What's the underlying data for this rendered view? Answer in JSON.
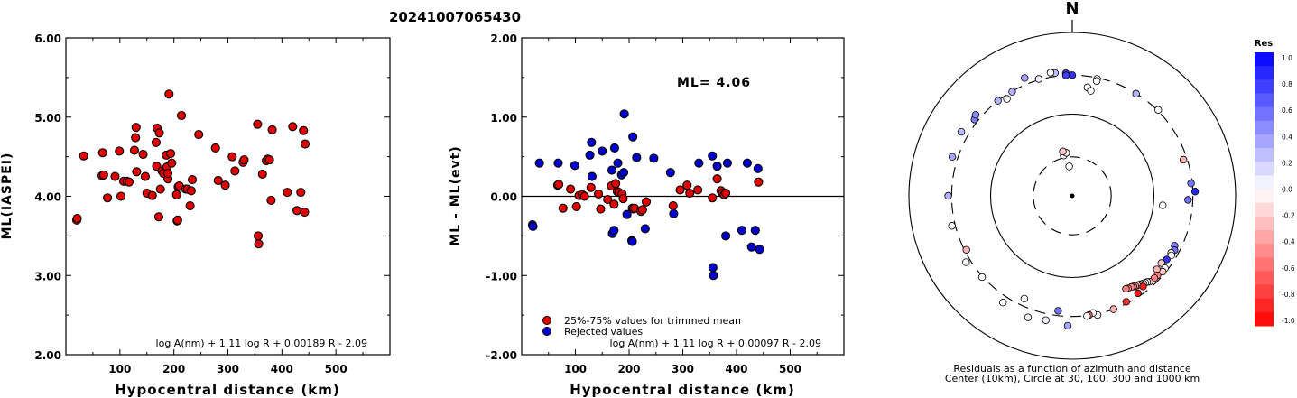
{
  "figure_title": "20241007065430",
  "chart_data": [
    {
      "type": "scatter",
      "title": "",
      "xlabel": "Hypocentral distance (km)",
      "ylabel": "ML(IASPEI)",
      "xlim": [
        0,
        600
      ],
      "ylim": [
        2.0,
        6.0
      ],
      "x_ticks": [
        "100",
        "200",
        "300",
        "400",
        "500"
      ],
      "y_ticks": [
        "2.00",
        "3.00",
        "4.00",
        "5.00",
        "6.00"
      ],
      "formula": "log A(nm) + 1.11 log R + 0.00189 R - 2.09",
      "grid": false,
      "series": [
        {
          "color": "#e00000",
          "points": [
            [
              20,
              3.7
            ],
            [
              21,
              3.72
            ],
            [
              33,
              4.51
            ],
            [
              67,
              4.26
            ],
            [
              68,
              4.55
            ],
            [
              70,
              4.27
            ],
            [
              77,
              3.98
            ],
            [
              91,
              4.25
            ],
            [
              99,
              4.57
            ],
            [
              102,
              4.0
            ],
            [
              107,
              4.19
            ],
            [
              113,
              4.19
            ],
            [
              117,
              4.18
            ],
            [
              127,
              4.58
            ],
            [
              129,
              4.74
            ],
            [
              130,
              4.87
            ],
            [
              131,
              4.31
            ],
            [
              143,
              4.53
            ],
            [
              147,
              4.25
            ],
            [
              150,
              4.04
            ],
            [
              160,
              4.01
            ],
            [
              167,
              4.68
            ],
            [
              168,
              4.38
            ],
            [
              169,
              4.86
            ],
            [
              172,
              3.74
            ],
            [
              173,
              4.8
            ],
            [
              175,
              4.09
            ],
            [
              178,
              4.32
            ],
            [
              181,
              4.29
            ],
            [
              186,
              4.52
            ],
            [
              187,
              4.37
            ],
            [
              189,
              4.22
            ],
            [
              189,
              4.29
            ],
            [
              191,
              5.29
            ],
            [
              194,
              4.54
            ],
            [
              196,
              4.42
            ],
            [
              205,
              4.02
            ],
            [
              206,
              3.69
            ],
            [
              207,
              3.7
            ],
            [
              208,
              4.12
            ],
            [
              210,
              4.13
            ],
            [
              214,
              5.02
            ],
            [
              222,
              4.09
            ],
            [
              225,
              4.09
            ],
            [
              230,
              3.88
            ],
            [
              232,
              4.07
            ],
            [
              234,
              4.21
            ],
            [
              246,
              4.78
            ],
            [
              277,
              4.61
            ],
            [
              282,
              4.2
            ],
            [
              295,
              4.14
            ],
            [
              308,
              4.5
            ],
            [
              313,
              4.32
            ],
            [
              328,
              4.43
            ],
            [
              330,
              4.46
            ],
            [
              355,
              4.91
            ],
            [
              356,
              3.5
            ],
            [
              357,
              3.4
            ],
            [
              364,
              4.28
            ],
            [
              371,
              4.45
            ],
            [
              374,
              4.47
            ],
            [
              377,
              4.46
            ],
            [
              380,
              3.95
            ],
            [
              382,
              4.84
            ],
            [
              410,
              4.05
            ],
            [
              420,
              4.88
            ],
            [
              428,
              3.82
            ],
            [
              435,
              4.05
            ],
            [
              440,
              4.83
            ],
            [
              442,
              3.8
            ],
            [
              443,
              4.66
            ]
          ]
        }
      ]
    },
    {
      "type": "scatter",
      "title": "",
      "xlabel": "Hypocentral distance (km)",
      "ylabel": "ML - ML(evt)",
      "xlim": [
        0,
        600
      ],
      "ylim": [
        -2.0,
        2.0
      ],
      "x_ticks": [
        "100",
        "200",
        "300",
        "400",
        "500"
      ],
      "y_ticks": [
        "-2.00",
        "-1.00",
        "0.00",
        "1.00",
        "2.00"
      ],
      "annotation": "ML= 4.06",
      "formula": "log A(nm) + 1.11 log R + 0.00097 R - 2.09",
      "legend_position": "bottom-left",
      "reference_line": 0,
      "series": [
        {
          "name": "25%-75% values for trimmed mean",
          "color": "#e00000",
          "points": [
            [
              67,
              0.14
            ],
            [
              69,
              0.15
            ],
            [
              77,
              -0.15
            ],
            [
              91,
              0.09
            ],
            [
              102,
              -0.13
            ],
            [
              107,
              0.01
            ],
            [
              113,
              0.02
            ],
            [
              117,
              0.0
            ],
            [
              129,
              0.11
            ],
            [
              143,
              0.03
            ],
            [
              147,
              -0.16
            ],
            [
              160,
              -0.04
            ],
            [
              167,
              0.13
            ],
            [
              172,
              -0.1
            ],
            [
              175,
              0.16
            ],
            [
              178,
              0.06
            ],
            [
              181,
              0.05
            ],
            [
              187,
              0.03
            ],
            [
              189,
              -0.03
            ],
            [
              206,
              -0.15
            ],
            [
              208,
              -0.16
            ],
            [
              210,
              -0.15
            ],
            [
              222,
              -0.19
            ],
            [
              225,
              -0.17
            ],
            [
              232,
              -0.07
            ],
            [
              282,
              -0.12
            ],
            [
              295,
              0.08
            ],
            [
              308,
              0.14
            ],
            [
              313,
              0.04
            ],
            [
              328,
              0.08
            ],
            [
              355,
              -0.02
            ],
            [
              364,
              0.22
            ],
            [
              371,
              0.07
            ],
            [
              374,
              0.04
            ],
            [
              377,
              0.02
            ],
            [
              380,
              0.04
            ],
            [
              441,
              0.18
            ]
          ]
        },
        {
          "name": "Rejected values",
          "color": "#0000cc",
          "points": [
            [
              20,
              -0.36
            ],
            [
              21,
              -0.38
            ],
            [
              33,
              0.42
            ],
            [
              68,
              0.42
            ],
            [
              99,
              0.39
            ],
            [
              127,
              0.52
            ],
            [
              130,
              0.68
            ],
            [
              131,
              0.25
            ],
            [
              150,
              0.57
            ],
            [
              168,
              0.33
            ],
            [
              169,
              -0.47
            ],
            [
              172,
              -0.43
            ],
            [
              173,
              0.61
            ],
            [
              179,
              0.42
            ],
            [
              186,
              0.27
            ],
            [
              190,
              0.3
            ],
            [
              191,
              1.04
            ],
            [
              196,
              -0.23
            ],
            [
              205,
              -0.56
            ],
            [
              206,
              -0.57
            ],
            [
              207,
              0.75
            ],
            [
              214,
              0.49
            ],
            [
              230,
              -0.41
            ],
            [
              246,
              0.48
            ],
            [
              277,
              0.3
            ],
            [
              283,
              -0.22
            ],
            [
              330,
              0.42
            ],
            [
              355,
              0.51
            ],
            [
              356,
              -0.9
            ],
            [
              357,
              -1.0
            ],
            [
              364,
              0.38
            ],
            [
              380,
              -0.5
            ],
            [
              383,
              0.42
            ],
            [
              410,
              -0.43
            ],
            [
              420,
              0.42
            ],
            [
              428,
              -0.64
            ],
            [
              435,
              -0.43
            ],
            [
              440,
              0.35
            ],
            [
              443,
              -0.67
            ]
          ]
        }
      ]
    },
    {
      "type": "scatter",
      "title": "N",
      "caption_line1": "Residuals as a function of azimuth and distance",
      "caption_line2": "Center (10km), Circle at 30, 100, 300 and 1000 km",
      "colorbar_title": "Res",
      "colorbar_ticks": [
        "1.0",
        "0.8",
        "0.6",
        "0.4",
        "0.2",
        "0.0",
        "-0.2",
        "-0.4",
        "-0.6",
        "-0.8",
        "-1.0"
      ],
      "colorbar_range": [
        -1.0,
        1.0
      ],
      "rings_km": [
        30,
        100,
        300,
        1000
      ],
      "points_polar_note_fields": [
        "azimuth_deg",
        "distance_km",
        "residual"
      ],
      "points": [
        [
          -6,
          23,
          0.0
        ],
        [
          -12,
          32,
          0.0
        ],
        [
          -8,
          34,
          -0.1
        ],
        [
          -12,
          36,
          -0.2
        ],
        [
          -8,
          330,
          0.25
        ],
        [
          -22,
          360,
          0.35
        ],
        [
          -10,
          340,
          0.0
        ],
        [
          -3,
          318,
          0.7
        ],
        [
          -3,
          300,
          0.75
        ],
        [
          0,
          300,
          0.8
        ],
        [
          -16,
          308,
          0.05
        ],
        [
          12,
          291,
          0.0
        ],
        [
          8,
          219,
          0.0
        ],
        [
          10,
          202,
          0.0
        ],
        [
          12,
          274,
          0.0
        ],
        [
          -30,
          296,
          0.3
        ],
        [
          -38,
          300,
          0.3
        ],
        [
          -34,
          270,
          0.0
        ],
        [
          -52,
          330,
          0.5
        ],
        [
          -50,
          350,
          0.45
        ],
        [
          -60,
          370,
          0.25
        ],
        [
          -72,
          350,
          0.35
        ],
        [
          -90,
          330,
          0.3
        ],
        [
          -104,
          330,
          0.0
        ],
        [
          -122,
          342,
          0.0
        ],
        [
          -132,
          306,
          0.0
        ],
        [
          -155,
          245,
          0.0
        ],
        [
          -117,
          285,
          -0.3
        ],
        [
          -147,
          361,
          0.0
        ],
        [
          -173,
          262,
          0.55
        ],
        [
          -178,
          390,
          0.35
        ],
        [
          -168,
          360,
          0.05
        ],
        [
          -160,
          383,
          0.05
        ],
        [
          32,
          298,
          0.3
        ],
        [
          45,
          308,
          0.0
        ],
        [
          72,
          270,
          -0.3
        ],
        [
          84,
          290,
          0.55
        ],
        [
          88,
          320,
          0.85
        ],
        [
          92,
          262,
          0.55
        ],
        [
          96,
          130,
          0.0
        ],
        [
          116,
          248,
          0.5
        ],
        [
          118,
          262,
          0.55
        ],
        [
          120,
          250,
          0.0
        ],
        [
          121,
          260,
          0.0
        ],
        [
          124,
          248,
          0.8
        ],
        [
          127,
          233,
          -0.2
        ],
        [
          128,
          275,
          0.0
        ],
        [
          130,
          278,
          -0.2
        ],
        [
          131,
          236,
          -0.3
        ],
        [
          133,
          267,
          -0.5
        ],
        [
          135,
          265,
          -0.5
        ],
        [
          138,
          260,
          -0.3
        ],
        [
          139,
          250,
          0.0
        ],
        [
          140,
          245,
          0.0
        ],
        [
          141,
          240,
          0.0
        ],
        [
          142,
          235,
          0.0
        ],
        [
          143,
          230,
          -0.3
        ],
        [
          144,
          226,
          -0.2
        ],
        [
          145,
          222,
          -0.4
        ],
        [
          146,
          218,
          -0.5
        ],
        [
          147,
          214,
          -0.5
        ],
        [
          149,
          210,
          -0.4
        ],
        [
          150,
          206,
          -0.5
        ],
        [
          146,
          274,
          -0.9
        ],
        [
          153,
          286,
          -0.8
        ],
        [
          142,
          256,
          -0.9
        ],
        [
          160,
          300,
          -0.3
        ],
        [
          168,
          310,
          0.0
        ],
        [
          170,
          286,
          0.0
        ],
        [
          172,
          298,
          -0.6
        ],
        [
          173,
          304,
          0.0
        ]
      ]
    }
  ]
}
